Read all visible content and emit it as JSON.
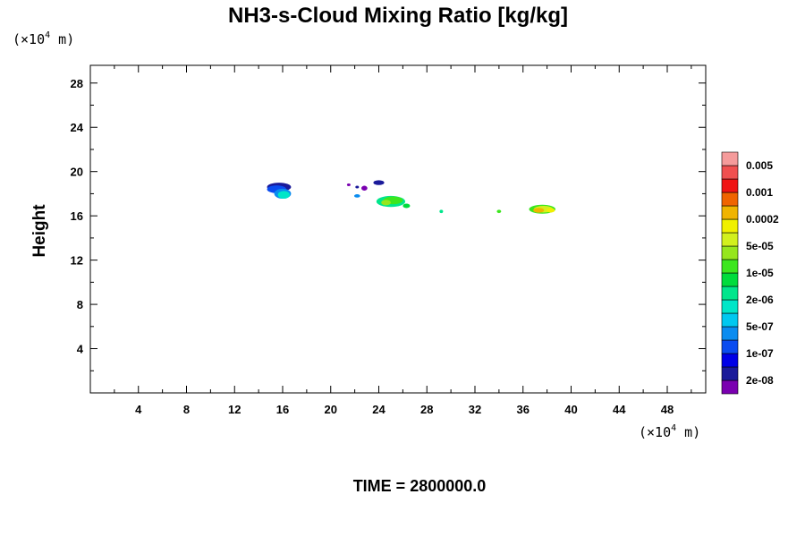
{
  "chart_data": {
    "type": "heatmap",
    "title": "NH3-s-Cloud Mixing Ratio [kg/kg]",
    "ylabel": "Height",
    "x_unit": {
      "prefix": "(×10",
      "exp": "4",
      "suffix": " m)"
    },
    "y_unit": {
      "prefix": "(×10",
      "exp": "4",
      "suffix": " m)"
    },
    "xlim": [
      0,
      51.2
    ],
    "ylim": [
      0,
      29.6
    ],
    "xticks": [
      4,
      8,
      12,
      16,
      20,
      24,
      28,
      32,
      36,
      40,
      44,
      48
    ],
    "yticks": [
      4,
      8,
      12,
      16,
      20,
      24,
      28
    ],
    "time_label": "TIME = 2800000.0",
    "colorbar": {
      "colors": [
        "#7a00b0",
        "#1a1a9a",
        "#0000e6",
        "#0a4cf0",
        "#0a8cf0",
        "#00c8f0",
        "#00e6c8",
        "#00e68c",
        "#00dc3c",
        "#3ce61e",
        "#96e61e",
        "#d2f01e",
        "#f0f000",
        "#f0b400",
        "#f06400",
        "#f01414",
        "#f05050",
        "#f59b9b"
      ],
      "labels": [
        {
          "between": [
            0,
            1
          ],
          "text": "2e-08"
        },
        {
          "between": [
            2,
            3
          ],
          "text": "1e-07"
        },
        {
          "between": [
            4,
            5
          ],
          "text": "5e-07"
        },
        {
          "between": [
            6,
            7
          ],
          "text": "2e-06"
        },
        {
          "between": [
            8,
            9
          ],
          "text": "1e-05"
        },
        {
          "between": [
            10,
            11
          ],
          "text": "5e-05"
        },
        {
          "between": [
            12,
            13
          ],
          "text": "0.0002"
        },
        {
          "between": [
            14,
            15
          ],
          "text": "0.001"
        },
        {
          "between": [
            16,
            17
          ],
          "text": "0.005"
        }
      ]
    },
    "blobs": [
      {
        "x": 15.7,
        "y": 18.6,
        "rx": 1.0,
        "ry": 0.4,
        "level": 1
      },
      {
        "x": 15.5,
        "y": 18.4,
        "rx": 0.8,
        "ry": 0.35,
        "level": 3
      },
      {
        "x": 16.0,
        "y": 18.0,
        "rx": 0.7,
        "ry": 0.45,
        "level": 4
      },
      {
        "x": 16.1,
        "y": 17.9,
        "rx": 0.5,
        "ry": 0.35,
        "level": 6
      },
      {
        "x": 21.5,
        "y": 18.8,
        "rx": 0.15,
        "ry": 0.12,
        "level": 0
      },
      {
        "x": 22.2,
        "y": 18.6,
        "rx": 0.15,
        "ry": 0.12,
        "level": 1
      },
      {
        "x": 22.8,
        "y": 18.5,
        "rx": 0.25,
        "ry": 0.22,
        "level": 0
      },
      {
        "x": 24.0,
        "y": 19.0,
        "rx": 0.45,
        "ry": 0.22,
        "level": 1
      },
      {
        "x": 22.2,
        "y": 17.8,
        "rx": 0.25,
        "ry": 0.15,
        "level": 4
      },
      {
        "x": 25.0,
        "y": 17.3,
        "rx": 1.2,
        "ry": 0.5,
        "level": 7
      },
      {
        "x": 25.2,
        "y": 17.4,
        "rx": 0.8,
        "ry": 0.35,
        "level": 9
      },
      {
        "x": 24.6,
        "y": 17.2,
        "rx": 0.4,
        "ry": 0.25,
        "level": 10
      },
      {
        "x": 26.3,
        "y": 16.9,
        "rx": 0.3,
        "ry": 0.2,
        "level": 8
      },
      {
        "x": 29.2,
        "y": 16.4,
        "rx": 0.15,
        "ry": 0.15,
        "level": 7
      },
      {
        "x": 34.0,
        "y": 16.4,
        "rx": 0.18,
        "ry": 0.15,
        "level": 9
      },
      {
        "x": 37.6,
        "y": 16.6,
        "rx": 1.1,
        "ry": 0.4,
        "level": 9
      },
      {
        "x": 37.7,
        "y": 16.6,
        "rx": 0.8,
        "ry": 0.3,
        "level": 11
      },
      {
        "x": 37.3,
        "y": 16.5,
        "rx": 0.45,
        "ry": 0.22,
        "level": 13
      },
      {
        "x": 38.3,
        "y": 16.5,
        "rx": 0.35,
        "ry": 0.2,
        "level": 12
      }
    ]
  }
}
